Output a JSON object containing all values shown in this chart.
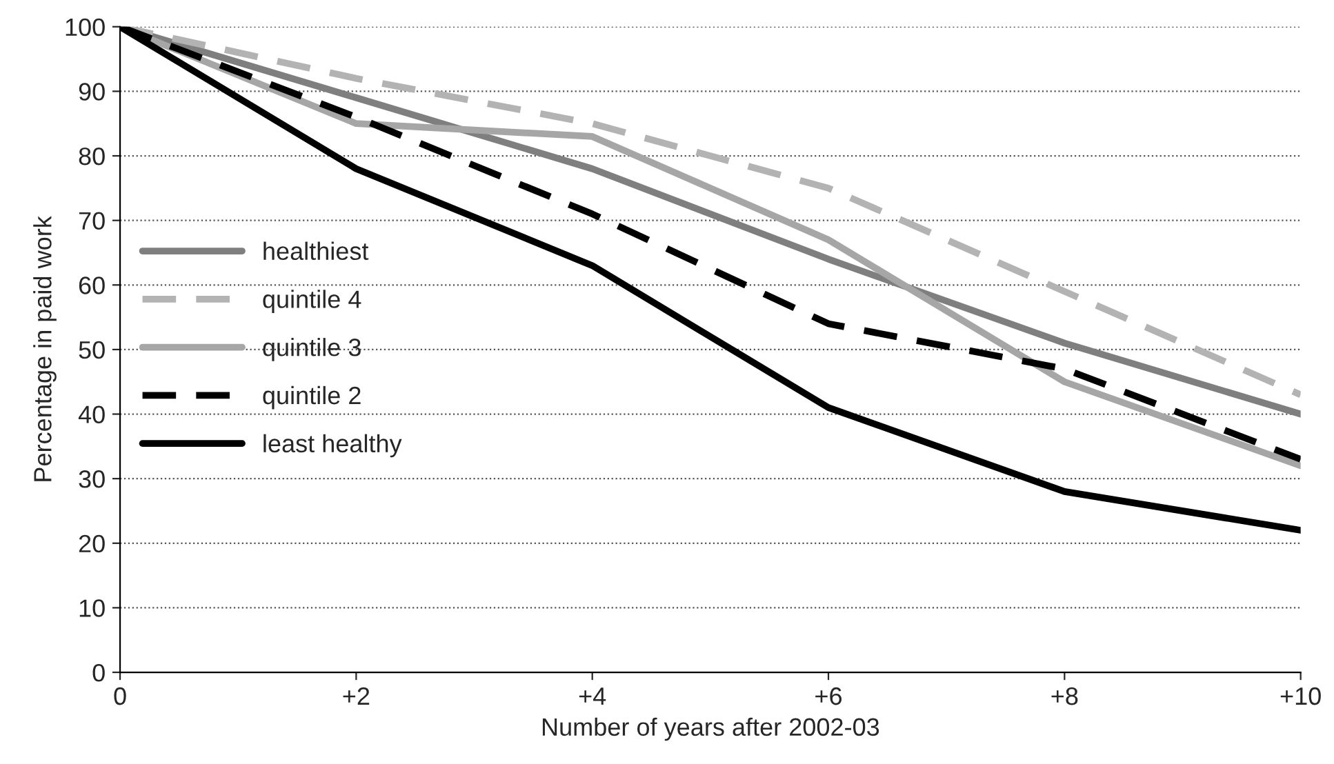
{
  "chart_data": {
    "type": "line",
    "xlabel": "Number of years after 2002-03",
    "ylabel": "Percentage in paid work",
    "x": [
      0,
      2,
      4,
      6,
      8,
      10
    ],
    "series": [
      {
        "name": "healthiest",
        "color": "#7f7f7f",
        "line_style": "solid",
        "values": [
          100,
          89,
          78,
          64,
          51,
          40
        ]
      },
      {
        "name": "quintile 4",
        "color": "#b3b3b3",
        "line_style": "dashed",
        "values": [
          100,
          92,
          85,
          75,
          59,
          43
        ]
      },
      {
        "name": "quintile 3",
        "color": "#a6a6a6",
        "line_style": "solid",
        "values": [
          100,
          85,
          83,
          67,
          45,
          32
        ]
      },
      {
        "name": "quintile 2",
        "color": "#000000",
        "line_style": "dashed",
        "values": [
          100,
          86,
          71,
          54,
          47,
          33
        ]
      },
      {
        "name": "least healthy",
        "color": "#000000",
        "line_style": "solid",
        "values": [
          100,
          78,
          63,
          41,
          28,
          22
        ]
      }
    ],
    "xlim": [
      0,
      10
    ],
    "xticks": [
      0,
      {
        "value": 2,
        "label": "+2"
      },
      {
        "value": 4,
        "label": "+4"
      },
      {
        "value": 6,
        "label": "+6"
      },
      {
        "value": 8,
        "label": "+8"
      },
      {
        "value": 10,
        "label": "+10"
      }
    ],
    "ylim": [
      0,
      100
    ],
    "yticks": [
      0,
      10,
      20,
      30,
      40,
      50,
      60,
      70,
      80,
      90,
      100
    ],
    "grid": "y",
    "legend": "center left",
    "marker": "none"
  }
}
